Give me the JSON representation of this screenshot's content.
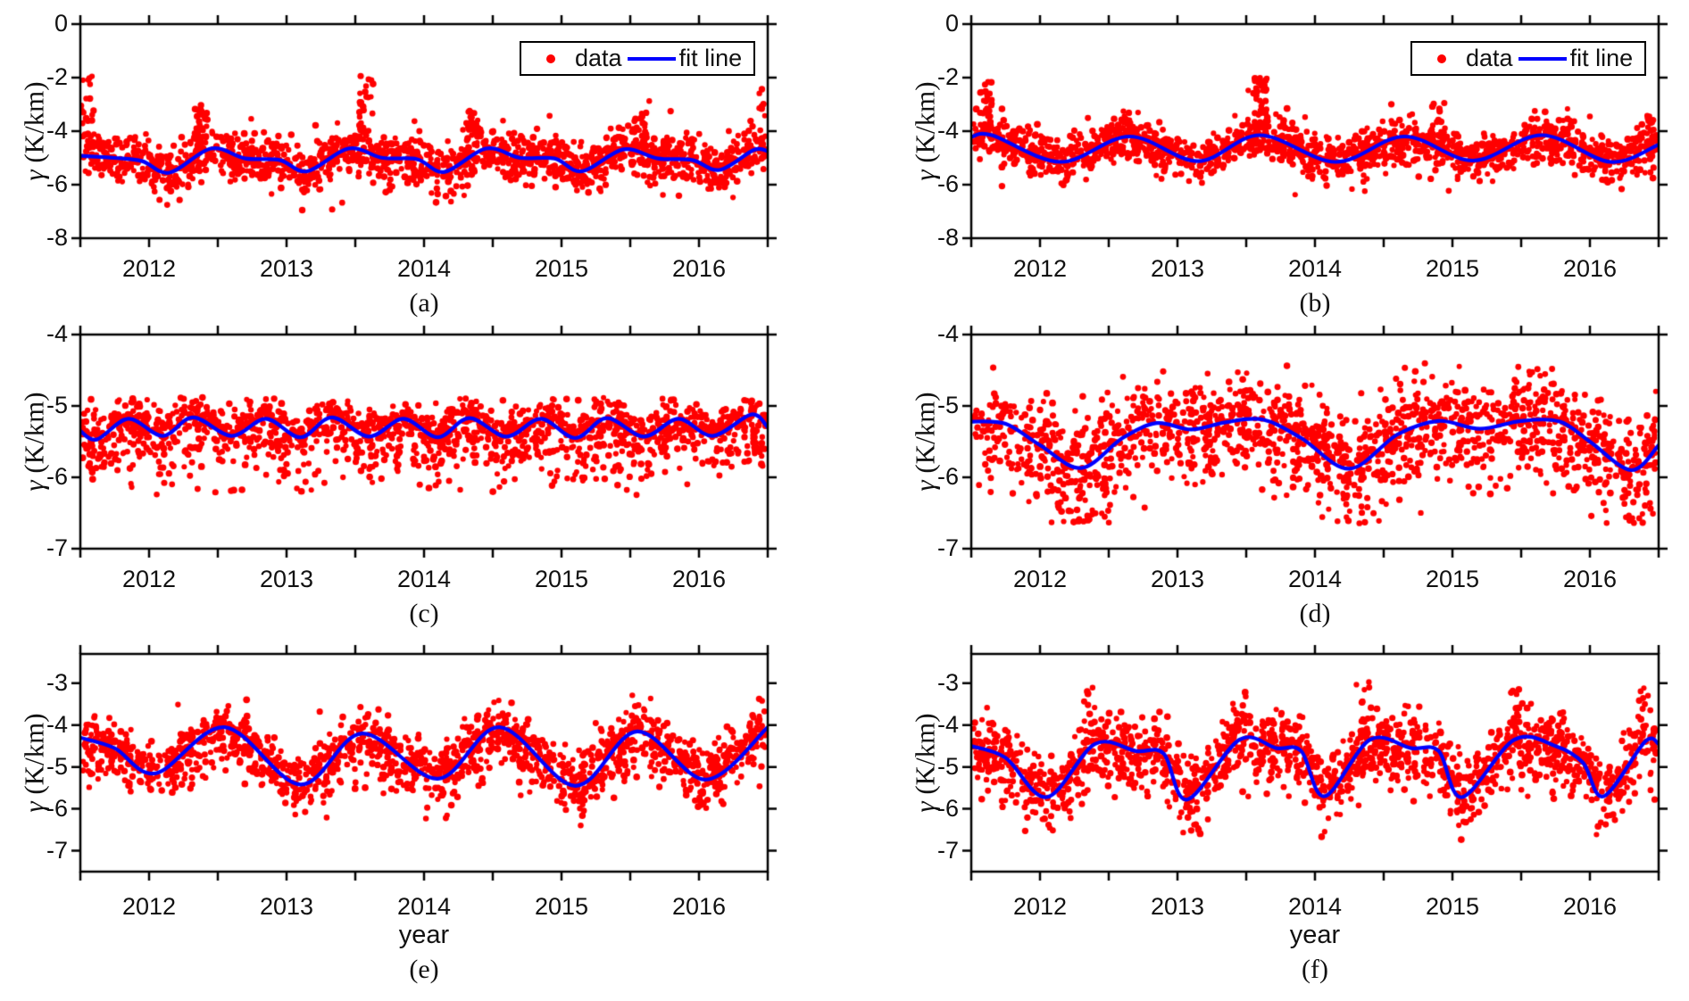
{
  "figure": {
    "background": "#ffffff",
    "colors": {
      "data_marker": "#ff0000",
      "fit_line": "#0000ff",
      "axis": "#000000",
      "text": "#111111"
    },
    "legend": {
      "data_label": "data",
      "fit_label": "fit line"
    }
  },
  "chart_data": [
    {
      "id": "a",
      "panel_label": "(a)",
      "type": "scatter",
      "series": [
        "data",
        "fit line"
      ],
      "xlabel": "",
      "ylabel": "γ (K/km)",
      "xlim": [
        2011.5,
        2016.5
      ],
      "xticks": [
        2012,
        2013,
        2014,
        2015,
        2016
      ],
      "x_minor_tick_interval": 0.5,
      "ylim": [
        -8,
        0
      ],
      "yticks": [
        0,
        -2,
        -4,
        -6,
        -8
      ],
      "show_legend": true,
      "grid": false,
      "fit_line": {
        "x": [
          2011.5,
          2011.75,
          2011.95,
          2012.15,
          2012.45,
          2012.7,
          2012.95,
          2013.15,
          2013.45,
          2013.7,
          2013.95,
          2014.15,
          2014.45,
          2014.7,
          2014.95,
          2015.15,
          2015.45,
          2015.7,
          2015.95,
          2016.15,
          2016.4,
          2016.5
        ],
        "y": [
          -4.92,
          -5.0,
          -5.12,
          -5.55,
          -4.65,
          -5.02,
          -5.08,
          -5.5,
          -4.65,
          -5.0,
          -5.05,
          -5.52,
          -4.65,
          -5.0,
          -5.02,
          -5.5,
          -4.68,
          -5.02,
          -5.08,
          -5.45,
          -4.7,
          -4.75
        ]
      },
      "scatter": {
        "n": 1550,
        "seed": 101,
        "sigma_up": 0.42,
        "sigma_down": 0.46,
        "clip": [
          -6.95,
          -1.9
        ],
        "outlier_frac": 0.05,
        "outlier_sigma": 0.8,
        "outlier_up_bias": 0.6,
        "spikes": [
          {
            "x": 2011.55,
            "top": -1.95,
            "n": 22
          },
          {
            "x": 2012.38,
            "top": -3.15,
            "n": 30
          },
          {
            "x": 2013.58,
            "top": -1.9,
            "n": 30
          },
          {
            "x": 2014.35,
            "top": -3.2,
            "n": 26
          },
          {
            "x": 2015.57,
            "top": -3.3,
            "n": 22
          },
          {
            "x": 2016.45,
            "top": -2.4,
            "n": 8
          }
        ]
      }
    },
    {
      "id": "b",
      "panel_label": "(b)",
      "type": "scatter",
      "series": [
        "data",
        "fit line"
      ],
      "xlabel": "",
      "ylabel": "γ (K/km)",
      "xlim": [
        2011.5,
        2016.5
      ],
      "xticks": [
        2012,
        2013,
        2014,
        2015,
        2016
      ],
      "x_minor_tick_interval": 0.5,
      "ylim": [
        -8,
        0
      ],
      "yticks": [
        0,
        -2,
        -4,
        -6,
        -8
      ],
      "show_legend": true,
      "grid": false,
      "fit_line": {
        "x": [
          2011.5,
          2011.65,
          2012.15,
          2012.65,
          2013.15,
          2013.6,
          2014.15,
          2014.65,
          2015.15,
          2015.65,
          2016.15,
          2016.5
        ],
        "y": [
          -4.22,
          -4.15,
          -5.15,
          -4.2,
          -5.12,
          -4.15,
          -5.15,
          -4.2,
          -5.1,
          -4.15,
          -5.15,
          -4.5
        ]
      },
      "scatter": {
        "n": 1550,
        "seed": 102,
        "sigma_up": 0.4,
        "sigma_down": 0.44,
        "clip": [
          -6.5,
          -1.95
        ],
        "outlier_frac": 0.05,
        "outlier_sigma": 0.75,
        "outlier_up_bias": 0.6,
        "spikes": [
          {
            "x": 2011.6,
            "top": -2.05,
            "n": 26
          },
          {
            "x": 2012.62,
            "top": -3.3,
            "n": 12
          },
          {
            "x": 2013.6,
            "top": -2.0,
            "n": 32
          },
          {
            "x": 2014.9,
            "top": -2.85,
            "n": 16
          },
          {
            "x": 2015.85,
            "top": -3.15,
            "n": 14
          },
          {
            "x": 2016.45,
            "top": -3.4,
            "n": 10
          }
        ]
      }
    },
    {
      "id": "c",
      "panel_label": "(c)",
      "type": "scatter",
      "series": [
        "data",
        "fit line"
      ],
      "xlabel": "",
      "ylabel": "γ (K/km)",
      "xlim": [
        2011.5,
        2016.5
      ],
      "xticks": [
        2012,
        2013,
        2014,
        2015,
        2016
      ],
      "x_minor_tick_interval": 0.5,
      "ylim": [
        -7,
        -4
      ],
      "yticks": [
        -4,
        -5,
        -6,
        -7
      ],
      "show_legend": false,
      "grid": false,
      "fit_line": {
        "x": [
          2011.5,
          2011.62,
          2011.85,
          2012.1,
          2012.32,
          2012.6,
          2012.85,
          2013.1,
          2013.33,
          2013.6,
          2013.85,
          2014.1,
          2014.33,
          2014.6,
          2014.85,
          2015.1,
          2015.33,
          2015.6,
          2015.85,
          2016.1,
          2016.38,
          2016.5
        ],
        "y": [
          -5.35,
          -5.47,
          -5.18,
          -5.42,
          -5.16,
          -5.42,
          -5.18,
          -5.44,
          -5.16,
          -5.43,
          -5.18,
          -5.44,
          -5.17,
          -5.43,
          -5.18,
          -5.45,
          -5.17,
          -5.43,
          -5.18,
          -5.42,
          -5.12,
          -5.3
        ]
      },
      "scatter": {
        "n": 1600,
        "seed": 103,
        "sigma_up": 0.16,
        "sigma_down": 0.34,
        "clip": [
          -6.25,
          -4.88
        ],
        "outlier_frac": 0.05,
        "outlier_sigma": 0.55,
        "outlier_up_bias": 0.15,
        "spikes": []
      }
    },
    {
      "id": "d",
      "panel_label": "(d)",
      "type": "scatter",
      "series": [
        "data",
        "fit line"
      ],
      "xlabel": "",
      "ylabel": "γ (K/km)",
      "xlim": [
        2011.5,
        2016.5
      ],
      "xticks": [
        2012,
        2013,
        2014,
        2015,
        2016
      ],
      "x_minor_tick_interval": 0.5,
      "ylim": [
        -7,
        -4
      ],
      "yticks": [
        -4,
        -5,
        -6,
        -7
      ],
      "show_legend": false,
      "grid": false,
      "fit_line": {
        "x": [
          2011.5,
          2011.75,
          2012.0,
          2012.3,
          2012.6,
          2012.85,
          2013.1,
          2013.35,
          2013.62,
          2013.9,
          2014.25,
          2014.6,
          2014.9,
          2015.2,
          2015.5,
          2015.78,
          2016.0,
          2016.3,
          2016.5
        ],
        "y": [
          -5.22,
          -5.25,
          -5.55,
          -5.87,
          -5.45,
          -5.24,
          -5.33,
          -5.23,
          -5.19,
          -5.45,
          -5.88,
          -5.4,
          -5.21,
          -5.32,
          -5.21,
          -5.22,
          -5.5,
          -5.9,
          -5.55
        ]
      },
      "scatter": {
        "n": 1600,
        "seed": 104,
        "sigma_up": 0.3,
        "sigma_down": 0.42,
        "clip": [
          -6.65,
          -4.4
        ],
        "outlier_frac": 0.05,
        "outlier_sigma": 0.5,
        "outlier_up_bias": 0.3,
        "spikes": []
      }
    },
    {
      "id": "e",
      "panel_label": "(e)",
      "type": "scatter",
      "series": [
        "data",
        "fit line"
      ],
      "xlabel": "year",
      "ylabel": "γ (K/km)",
      "xlim": [
        2011.5,
        2016.5
      ],
      "xticks": [
        2012,
        2013,
        2014,
        2015,
        2016
      ],
      "x_minor_tick_interval": 0.5,
      "ylim": [
        -7.5,
        -2.3
      ],
      "yticks": [
        -3,
        -4,
        -5,
        -6,
        -7
      ],
      "show_legend": false,
      "grid": false,
      "fit_line": {
        "x": [
          2011.5,
          2011.75,
          2012.05,
          2012.55,
          2013.1,
          2013.55,
          2014.1,
          2014.55,
          2015.1,
          2015.55,
          2016.05,
          2016.5
        ],
        "y": [
          -4.3,
          -4.55,
          -5.15,
          -4.05,
          -5.42,
          -4.2,
          -5.28,
          -4.05,
          -5.45,
          -4.15,
          -5.3,
          -4.05
        ]
      },
      "scatter": {
        "n": 1600,
        "seed": 105,
        "sigma_up": 0.33,
        "sigma_down": 0.42,
        "clip": [
          -6.55,
          -3.25
        ],
        "outlier_frac": 0.04,
        "outlier_sigma": 0.5,
        "outlier_up_bias": 0.4,
        "spikes": []
      }
    },
    {
      "id": "f",
      "panel_label": "(f)",
      "type": "scatter",
      "series": [
        "data",
        "fit line"
      ],
      "xlabel": "year",
      "ylabel": "γ (K/km)",
      "xlim": [
        2011.5,
        2016.5
      ],
      "xticks": [
        2012,
        2013,
        2014,
        2015,
        2016
      ],
      "x_minor_tick_interval": 0.5,
      "ylim": [
        -7.5,
        -2.3
      ],
      "yticks": [
        -3,
        -4,
        -5,
        -6,
        -7
      ],
      "show_legend": false,
      "grid": false,
      "fit_line": {
        "x": [
          2011.5,
          2011.75,
          2012.05,
          2012.4,
          2012.7,
          2012.9,
          2013.07,
          2013.45,
          2013.72,
          2013.9,
          2014.07,
          2014.4,
          2014.7,
          2014.9,
          2015.07,
          2015.45,
          2015.75,
          2015.95,
          2016.1,
          2016.4,
          2016.5
        ],
        "y": [
          -4.5,
          -4.78,
          -5.72,
          -4.45,
          -4.62,
          -4.68,
          -5.78,
          -4.35,
          -4.55,
          -4.62,
          -5.7,
          -4.35,
          -4.55,
          -4.62,
          -5.72,
          -4.35,
          -4.5,
          -4.9,
          -5.7,
          -4.4,
          -4.45
        ]
      },
      "scatter": {
        "n": 1600,
        "seed": 106,
        "sigma_up": 0.4,
        "sigma_down": 0.5,
        "clip": [
          -7.25,
          -2.9
        ],
        "outlier_frac": 0.04,
        "outlier_sigma": 0.5,
        "outlier_up_bias": 0.4,
        "spikes": [
          {
            "x": 2012.35,
            "top": -3.0,
            "n": 10
          },
          {
            "x": 2013.45,
            "top": -3.1,
            "n": 8
          },
          {
            "x": 2014.35,
            "top": -2.95,
            "n": 10
          },
          {
            "x": 2015.45,
            "top": -3.05,
            "n": 8
          },
          {
            "x": 2016.4,
            "top": -3.1,
            "n": 8
          }
        ]
      }
    }
  ]
}
